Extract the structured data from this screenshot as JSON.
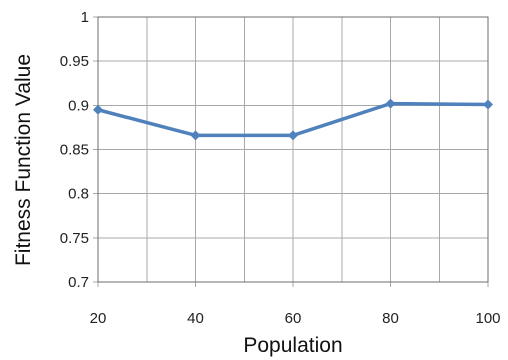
{
  "chart_data": {
    "type": "line",
    "title": "",
    "xlabel": "Population",
    "ylabel": "Fitness Function Value",
    "x": [
      20,
      40,
      60,
      80,
      100
    ],
    "x_ticks": [
      "20",
      "40",
      "60",
      "80",
      "100"
    ],
    "y_ticks": [
      "0.7",
      "0.75",
      "0.8",
      "0.85",
      "0.9",
      "0.95",
      "1"
    ],
    "xlim": [
      20,
      100
    ],
    "ylim": [
      0.7,
      1.0
    ],
    "grid": true,
    "legend": "none",
    "series": [
      {
        "values": [
          0.895,
          0.866,
          0.866,
          0.902,
          0.901
        ],
        "color": "#4f81bd",
        "marker": "diamond"
      }
    ]
  }
}
